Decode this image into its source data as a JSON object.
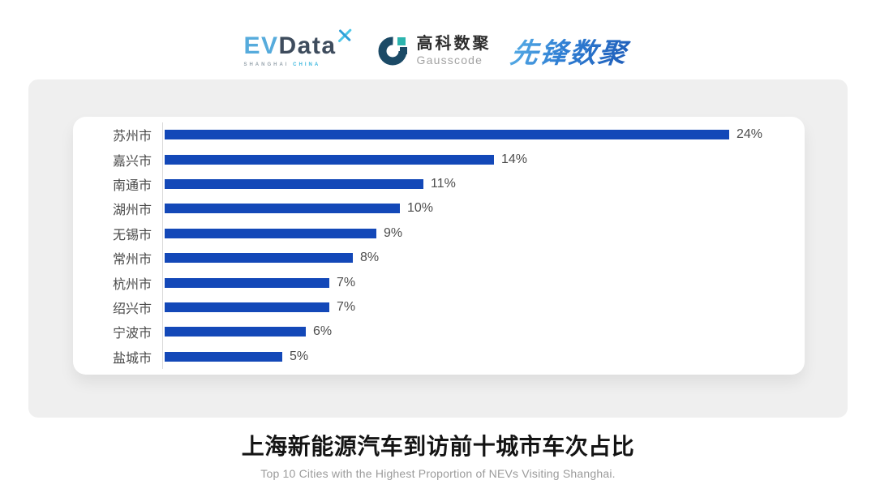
{
  "header": {
    "evdata": {
      "part_ev": "EV",
      "part_data": "Data",
      "sub_left": "SHANGHAI",
      "sub_right": "CHINA"
    },
    "gausscode": {
      "cn": "高科数聚",
      "en": "Gausscode"
    },
    "pioneer": {
      "text": "先锋数聚"
    }
  },
  "chart_data": {
    "type": "bar",
    "orientation": "horizontal",
    "title": "上海新能源汽车到访前十城市车次占比",
    "subtitle": "Top 10 Cities with the Highest Proportion of  NEVs Visiting Shanghai.",
    "categories": [
      "苏州市",
      "嘉兴市",
      "南通市",
      "湖州市",
      "无锡市",
      "常州市",
      "杭州市",
      "绍兴市",
      "宁波市",
      "盐城市"
    ],
    "values": [
      24,
      14,
      11,
      10,
      9,
      8,
      7,
      7,
      6,
      5
    ],
    "value_labels": [
      "24%",
      "14%",
      "11%",
      "10%",
      "9%",
      "8%",
      "7%",
      "7%",
      "6%",
      "5%"
    ],
    "unit": "%",
    "xlim": [
      0,
      25
    ],
    "bar_color": "#1348b8",
    "label_color": "#4a4a4a",
    "grid": false,
    "legend": false
  },
  "colors": {
    "panel_bg": "#efefef",
    "card_bg": "#ffffff",
    "axis_line": "#d9d9d9",
    "bar_blue": "#1348b8",
    "logo_light_blue": "#56abdc",
    "logo_dark_slate": "#3e4c5d",
    "logo_teal": "#2cb4ae",
    "logo_navy": "#1b4a66",
    "pioneer_blue": "#2f7fd4"
  }
}
